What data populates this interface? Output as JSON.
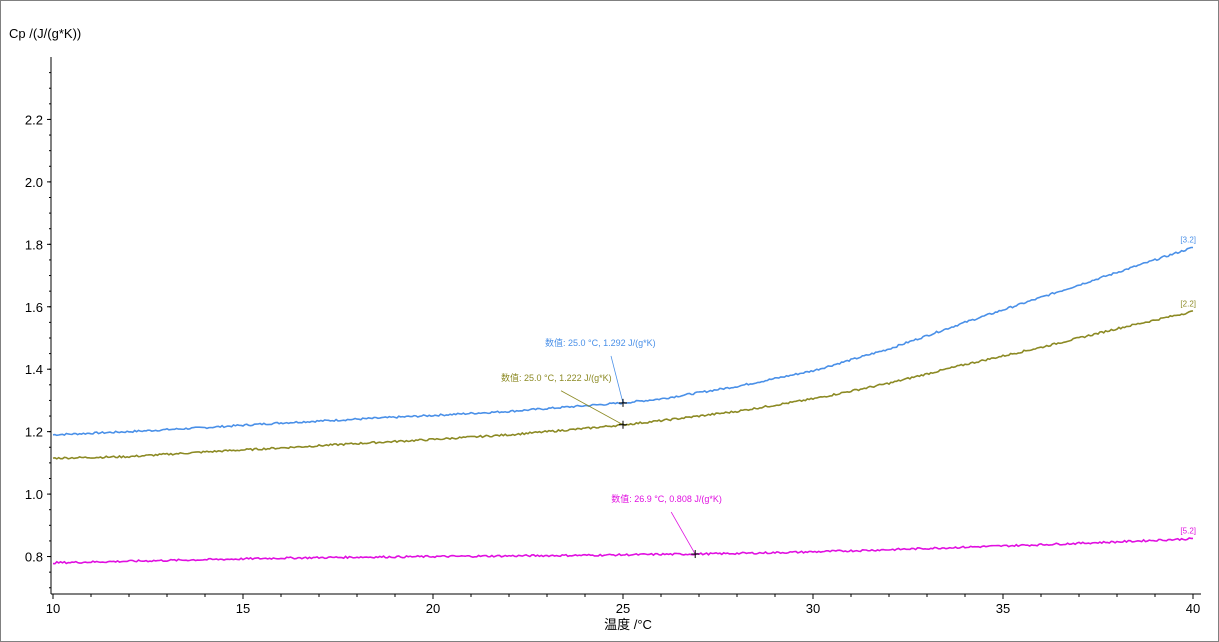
{
  "chart_data": {
    "type": "line",
    "ylabel": "Cp /(J/(g*K))",
    "xlabel": "温度 /°C",
    "xlim": [
      10,
      40
    ],
    "ylim": [
      0.68,
      2.4
    ],
    "xticks": [
      "10",
      "15",
      "20",
      "25",
      "30",
      "35",
      "40"
    ],
    "yticks": [
      "0.8",
      "1.0",
      "1.2",
      "1.4",
      "1.6",
      "1.8",
      "2.0",
      "2.2"
    ],
    "grid": false,
    "series": [
      {
        "name": "[3.2]",
        "color": "#4a90e8",
        "x": [
          10,
          12,
          14,
          16,
          18,
          20,
          22,
          24,
          25,
          26,
          28,
          30,
          32,
          34,
          36,
          38,
          40
        ],
        "y": [
          1.19,
          1.2,
          1.213,
          1.228,
          1.24,
          1.252,
          1.265,
          1.283,
          1.292,
          1.305,
          1.345,
          1.395,
          1.465,
          1.55,
          1.63,
          1.71,
          1.79
        ]
      },
      {
        "name": "[2.2]",
        "color": "#8c8a24",
        "x": [
          10,
          12,
          14,
          16,
          18,
          20,
          22,
          24,
          25,
          26,
          28,
          30,
          32,
          34,
          36,
          38,
          40
        ],
        "y": [
          1.115,
          1.12,
          1.135,
          1.148,
          1.162,
          1.175,
          1.19,
          1.21,
          1.222,
          1.235,
          1.265,
          1.305,
          1.355,
          1.415,
          1.47,
          1.53,
          1.585
        ]
      },
      {
        "name": "[5.2]",
        "color": "#e010e0",
        "x": [
          10,
          12,
          14,
          16,
          18,
          20,
          22,
          24,
          26,
          26.9,
          28,
          30,
          32,
          34,
          36,
          38,
          40
        ],
        "y": [
          0.78,
          0.785,
          0.79,
          0.795,
          0.798,
          0.8,
          0.802,
          0.804,
          0.807,
          0.808,
          0.81,
          0.815,
          0.822,
          0.83,
          0.838,
          0.847,
          0.857
        ]
      }
    ],
    "annotations": [
      {
        "text": "数值: 25.0 °C, 1.292 J/(g*K)",
        "x": 25.0,
        "y": 1.292,
        "color": "#4a90e8",
        "series": "[3.2]"
      },
      {
        "text": "数值: 25.0 °C, 1.222 J/(g*K)",
        "x": 25.0,
        "y": 1.222,
        "color": "#8c8a24",
        "series": "[2.2]"
      },
      {
        "text": "数值: 26.9 °C, 0.808 J/(g*K)",
        "x": 26.9,
        "y": 0.808,
        "color": "#e010e0",
        "series": "[5.2]"
      }
    ]
  }
}
